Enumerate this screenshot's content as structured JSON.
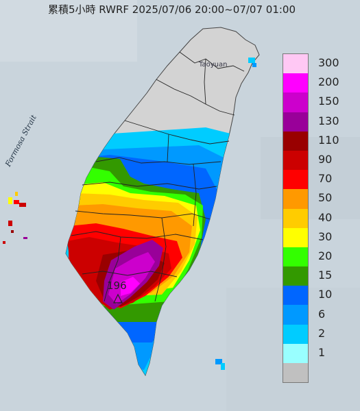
{
  "title": "累積5小時 RWRF 2025/07/06 20:00~07/07 01:00",
  "labels": {
    "strait": "Formosa Strait",
    "city": "Taoyuan",
    "max_value": "196"
  },
  "legend": {
    "levels": [
      {
        "label": "300",
        "color": "#ffc8f4"
      },
      {
        "label": "200",
        "color": "#ff00ff"
      },
      {
        "label": "150",
        "color": "#cc00cc"
      },
      {
        "label": "130",
        "color": "#990099"
      },
      {
        "label": "110",
        "color": "#990000"
      },
      {
        "label": "90",
        "color": "#cc0000"
      },
      {
        "label": "70",
        "color": "#ff0000"
      },
      {
        "label": "50",
        "color": "#ff9900"
      },
      {
        "label": "40",
        "color": "#ffcc00"
      },
      {
        "label": "30",
        "color": "#ffff00"
      },
      {
        "label": "20",
        "color": "#33ff00"
      },
      {
        "label": "15",
        "color": "#339900"
      },
      {
        "label": "10",
        "color": "#0066ff"
      },
      {
        "label": "6",
        "color": "#0099ff"
      },
      {
        "label": "2",
        "color": "#00ccff"
      },
      {
        "label": "1",
        "color": "#99ffff"
      },
      {
        "label": "",
        "color": "#c0c0c0"
      }
    ]
  },
  "colors": {
    "sea": "#c9d4dc",
    "land": "#d3d3d3",
    "boundary": "#222222"
  }
}
